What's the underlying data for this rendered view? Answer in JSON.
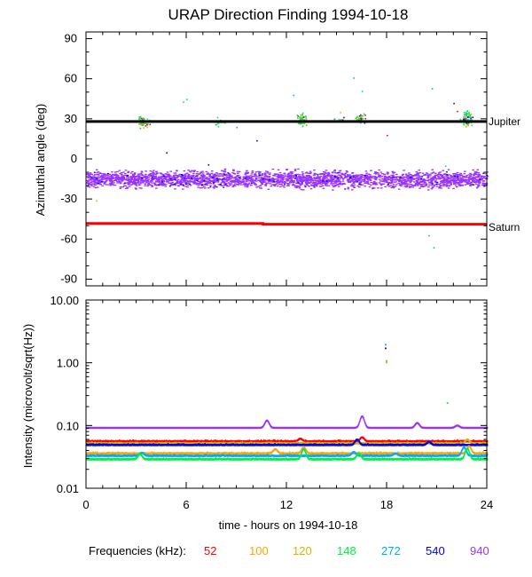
{
  "chart_data": [
    {
      "type": "scatter",
      "panel": "top",
      "title": "URAP Direction Finding  1994-10-18",
      "ylabel": "Azimuthal angle (deg)",
      "xlim": [
        0,
        24
      ],
      "ylim": [
        -95,
        95
      ],
      "yticks": [
        90,
        60,
        30,
        0,
        -30,
        -60,
        -90
      ],
      "reference_lines": [
        {
          "name": "Jupiter",
          "label": "Jupiter",
          "color": "#000000",
          "points": [
            [
              0,
              28
            ],
            [
              24,
              28
            ]
          ]
        },
        {
          "name": "Saturn",
          "label": "Saturn",
          "color": "#ff0000",
          "points": [
            [
              0,
              -48.3
            ],
            [
              10.6,
              -48.3
            ],
            [
              10.6,
              -48.9
            ],
            [
              24,
              -48.9
            ]
          ]
        }
      ],
      "band": {
        "series": "940",
        "center": -15,
        "spread": 9,
        "range": [
          0,
          24
        ]
      },
      "clusters": [
        {
          "x": 3.4,
          "y": 28,
          "n": 50
        },
        {
          "x": 8.0,
          "y": 29,
          "n": 14
        },
        {
          "x": 12.9,
          "y": 30,
          "n": 70
        },
        {
          "x": 15.2,
          "y": 31,
          "n": 10
        },
        {
          "x": 16.4,
          "y": 30,
          "n": 40
        },
        {
          "x": 22.8,
          "y": 30,
          "n": 90
        }
      ],
      "outliers": [
        {
          "x": 6.0,
          "y": 45,
          "series": "148"
        },
        {
          "x": 5.8,
          "y": 43,
          "series": "148"
        },
        {
          "x": 9.0,
          "y": 24,
          "series": "272"
        },
        {
          "x": 10.2,
          "y": 14,
          "series": "540"
        },
        {
          "x": 12.4,
          "y": 48,
          "series": "272"
        },
        {
          "x": 16.0,
          "y": 61,
          "series": "272"
        },
        {
          "x": 16.5,
          "y": 51,
          "series": "148"
        },
        {
          "x": 18.0,
          "y": 18,
          "series": "52"
        },
        {
          "x": 20.7,
          "y": 53,
          "series": "272"
        },
        {
          "x": 20.5,
          "y": -57,
          "series": "272"
        },
        {
          "x": 20.8,
          "y": -66,
          "series": "272"
        },
        {
          "x": 22.0,
          "y": 42,
          "series": "540"
        },
        {
          "x": 22.2,
          "y": 36,
          "series": "52"
        },
        {
          "x": 4.8,
          "y": 5,
          "series": "540"
        },
        {
          "x": 7.3,
          "y": -4,
          "series": "540"
        },
        {
          "x": 0.6,
          "y": -31,
          "series": "120"
        },
        {
          "x": 21.5,
          "y": -5,
          "series": "148"
        }
      ]
    },
    {
      "type": "line",
      "panel": "bottom",
      "ylabel": "Intensity (microvolt/sqrt(Hz))",
      "xlabel": "time - hours on 1994-10-18",
      "xlim": [
        0,
        24
      ],
      "xticks": [
        0,
        6,
        12,
        18,
        24
      ],
      "ylim": [
        0.01,
        10
      ],
      "yscale": "log",
      "yticks": [
        10.0,
        1.0,
        0.1,
        0.01
      ],
      "ytick_labels": [
        "10.00",
        "1.00",
        "0.10",
        "0.01"
      ],
      "series": [
        {
          "name": "940",
          "base": 0.092,
          "spikes": [
            [
              10.8,
              0.12
            ],
            [
              16.5,
              0.14
            ],
            [
              19.8,
              0.11
            ],
            [
              22.2,
              0.1
            ]
          ]
        },
        {
          "name": "52",
          "base": 0.056,
          "spikes": [
            [
              12.8,
              0.062
            ],
            [
              16.5,
              0.065
            ]
          ]
        },
        {
          "name": "120",
          "base": 0.052,
          "spikes": [
            [
              22.8,
              0.06
            ]
          ]
        },
        {
          "name": "540",
          "base": 0.049,
          "spikes": [
            [
              16.2,
              0.06
            ],
            [
              20.5,
              0.055
            ]
          ]
        },
        {
          "name": "100",
          "base": 0.036,
          "spikes": [
            [
              11.3,
              0.042
            ],
            [
              13.0,
              0.045
            ],
            [
              22.9,
              0.047
            ]
          ]
        },
        {
          "name": "272",
          "base": 0.033,
          "spikes": [
            [
              3.3,
              0.037
            ],
            [
              16.0,
              0.038
            ],
            [
              18.5,
              0.036
            ],
            [
              22.6,
              0.045
            ]
          ]
        },
        {
          "name": "148",
          "base": 0.029,
          "spikes": [
            [
              3.2,
              0.035
            ],
            [
              13.0,
              0.042
            ],
            [
              16.3,
              0.036
            ],
            [
              22.8,
              0.043
            ]
          ]
        }
      ],
      "scattered_points": [
        {
          "x": 17.9,
          "y": 2.0,
          "series": "272"
        },
        {
          "x": 17.9,
          "y": 1.75,
          "series": "540"
        },
        {
          "x": 17.95,
          "y": 1.1,
          "series": "148"
        },
        {
          "x": 17.95,
          "y": 1.04,
          "series": "120"
        },
        {
          "x": 21.6,
          "y": 0.235,
          "series": "148"
        }
      ]
    }
  ],
  "legend": {
    "label": "Frequencies (kHz):",
    "items": [
      {
        "name": "52",
        "label": "52",
        "color": "#ff0000"
      },
      {
        "name": "100",
        "label": "100",
        "color": "#ffa500"
      },
      {
        "name": "120",
        "label": "120",
        "color": "#d8b400"
      },
      {
        "name": "148",
        "label": "148",
        "color": "#00ee44"
      },
      {
        "name": "272",
        "label": "272",
        "color": "#00a8ff"
      },
      {
        "name": "540",
        "label": "540",
        "color": "#0000ee"
      },
      {
        "name": "940",
        "label": "940",
        "color": "#9933ff"
      }
    ]
  }
}
